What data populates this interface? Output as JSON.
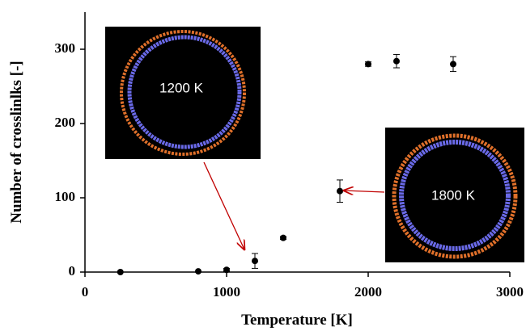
{
  "chart_data": {
    "type": "scatter",
    "x_label": "Temperature  [K]",
    "y_label": "Number of crosslinlks  [-]",
    "xlim": [
      0,
      3000
    ],
    "xticks": [
      0,
      1000,
      2000,
      3000
    ],
    "ylim": [
      0,
      350
    ],
    "yticks": [
      0,
      100,
      200,
      300
    ],
    "series": [
      {
        "color": "#000000",
        "x": [
          250,
          800,
          1000,
          1200,
          1400,
          1800,
          2000,
          2200,
          2600
        ],
        "values": [
          0,
          1,
          3,
          15,
          46,
          109,
          280,
          284,
          280
        ],
        "errors": [
          0,
          0,
          2,
          10,
          2,
          15,
          3,
          9,
          10
        ]
      }
    ],
    "annotations": [
      "1200 K",
      "1800 K"
    ]
  }
}
